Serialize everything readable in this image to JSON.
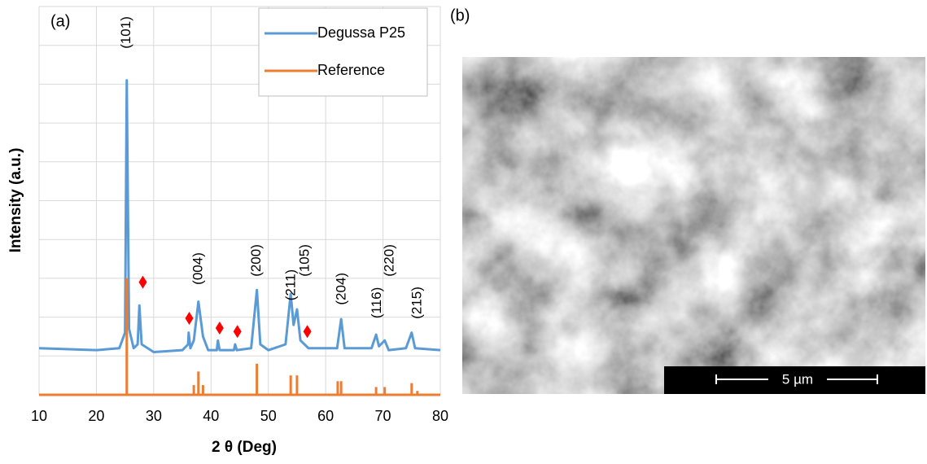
{
  "panel_labels": [
    "(a)",
    "(b)"
  ],
  "image": {
    "scale_bar": "5 µm"
  },
  "chart_data": {
    "type": "line",
    "x_label": "2 θ (Deg)",
    "y_label": "Intensity (a.u.)",
    "xlim": [
      10,
      80
    ],
    "xticks": [
      10,
      20,
      30,
      40,
      50,
      60,
      70,
      80
    ],
    "ylim": [
      0,
      10
    ],
    "yticks": [
      0,
      1,
      2,
      3,
      4,
      5,
      6,
      7,
      8,
      9,
      10
    ],
    "grid": true,
    "legend": "upper right",
    "series": [
      {
        "name": "Degussa P25",
        "color": "#5b9bd5",
        "style": "line",
        "x": [
          10,
          20,
          24,
          25,
          25.3,
          25.7,
          26.5,
          27.2,
          27.5,
          27.9,
          30,
          35,
          36,
          36.1,
          36.4,
          37,
          37.8,
          38.6,
          39.5,
          41,
          41.2,
          41.5,
          44,
          44.2,
          44.5,
          47,
          48,
          48.6,
          50,
          53,
          53.9,
          54.4,
          55,
          55.6,
          57,
          62,
          62.7,
          63.3,
          68,
          68.8,
          69.3,
          70.3,
          71,
          74,
          75,
          75.6,
          80
        ],
        "values": [
          1.2,
          1.15,
          1.2,
          1.6,
          8.1,
          1.7,
          1.2,
          1.3,
          2.3,
          1.3,
          1.1,
          1.15,
          1.3,
          1.6,
          1.2,
          1.4,
          2.4,
          1.5,
          1.15,
          1.15,
          1.4,
          1.15,
          1.15,
          1.3,
          1.15,
          1.2,
          2.7,
          1.3,
          1.15,
          1.3,
          2.6,
          1.8,
          2.2,
          1.4,
          1.2,
          1.2,
          1.95,
          1.2,
          1.2,
          1.55,
          1.25,
          1.4,
          1.15,
          1.2,
          1.6,
          1.2,
          1.15
        ]
      },
      {
        "name": "Reference",
        "color": "#ed7d31",
        "style": "sticks",
        "x": [
          25.3,
          37,
          37.8,
          38.6,
          48,
          53.9,
          55,
          62.1,
          62.7,
          68.8,
          70.3,
          75,
          76
        ],
        "values": [
          3.0,
          0.25,
          0.6,
          0.25,
          0.8,
          0.5,
          0.5,
          0.35,
          0.35,
          0.2,
          0.2,
          0.3,
          0.1
        ]
      }
    ],
    "annotations": [
      {
        "text": "(101)",
        "x": 25.3,
        "y": 9.33
      },
      {
        "text": "(004)",
        "x": 37.8,
        "y": 3.25
      },
      {
        "text": "(200)",
        "x": 48,
        "y": 3.46
      },
      {
        "text": "(211)",
        "x": 54,
        "y": 2.83
      },
      {
        "text": "(105)",
        "x": 56.4,
        "y": 3.46
      },
      {
        "text": "(204)",
        "x": 62.8,
        "y": 2.73
      },
      {
        "text": "(116)",
        "x": 69,
        "y": 2.37
      },
      {
        "text": "(220)",
        "x": 71.2,
        "y": 3.46
      },
      {
        "text": "(215)",
        "x": 76,
        "y": 2.37
      }
    ],
    "markers": {
      "color": "#ff0000",
      "x": [
        28.1,
        36.2,
        41.5,
        44.6,
        56.8
      ],
      "y": [
        2.9,
        1.97,
        1.72,
        1.63,
        1.63
      ]
    }
  }
}
